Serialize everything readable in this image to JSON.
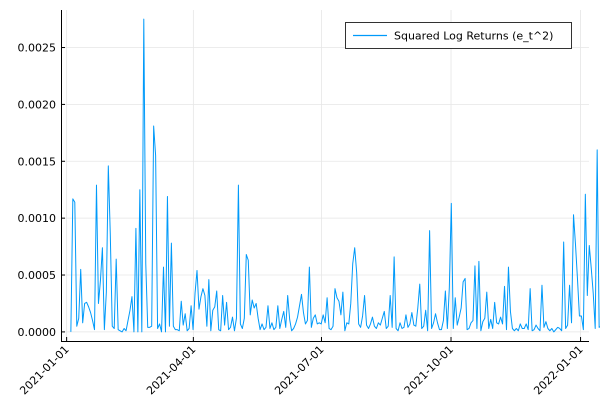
{
  "chart_data": {
    "type": "line",
    "title": "",
    "xlabel": "",
    "ylabel": "",
    "grid": true,
    "legend_position": "top-right",
    "colors": {
      "series": "#009AFA",
      "grid": "#E6E6E6",
      "axis": "#000000"
    },
    "xlim": [
      "2020-12-28",
      "2022-01-07"
    ],
    "ylim": [
      -8e-05,
      0.00283
    ],
    "x_ticks": [
      "2021-01-01",
      "2021-04-01",
      "2021-07-01",
      "2021-10-01",
      "2022-01-01"
    ],
    "y_ticks": [
      "0.0000",
      "0.0005",
      "0.0010",
      "0.0015",
      "0.0020",
      "0.0025"
    ],
    "series": [
      {
        "name": "Squared Log Returns (e_t^2)",
        "x_start": "2021-01-04",
        "x_step_days": 1.4,
        "values": [
          0.0,
          0.00117,
          0.00114,
          5e-05,
          0.00012,
          0.00055,
          8e-05,
          0.00025,
          0.00026,
          0.00022,
          0.00017,
          0.0001,
          2e-05,
          0.00129,
          0.00025,
          0.00045,
          0.00074,
          2e-05,
          0.00035,
          0.00146,
          0.00086,
          5e-05,
          3e-05,
          0.00064,
          2e-05,
          1e-05,
          0.0,
          3e-05,
          1e-05,
          0.0001,
          0.00019,
          0.00031,
          0.0,
          0.00091,
          0.0,
          0.00125,
          0.0,
          0.00275,
          0.0006,
          4e-05,
          4e-05,
          5e-05,
          0.00181,
          0.00155,
          3e-05,
          7e-05,
          0.0,
          0.00057,
          0.0,
          0.00119,
          5e-05,
          0.00078,
          5e-05,
          2e-05,
          2e-05,
          1e-05,
          0.00027,
          6e-05,
          0.00016,
          1e-05,
          3e-05,
          0.00023,
          2e-05,
          0.00034,
          0.00054,
          0.0002,
          0.00031,
          0.00038,
          0.00032,
          5e-05,
          0.00046,
          1e-05,
          0.00019,
          0.00022,
          0.00036,
          2e-05,
          1e-05,
          0.00032,
          6e-05,
          0.00026,
          2e-05,
          4e-05,
          0.00013,
          1e-05,
          0.00012,
          0.00129,
          7e-05,
          3e-05,
          0.00012,
          0.00068,
          0.00063,
          0.00015,
          0.00028,
          0.00021,
          0.00025,
          0.00012,
          2e-05,
          7e-05,
          2e-05,
          4e-05,
          0.00023,
          3e-05,
          8e-05,
          2e-05,
          4e-05,
          0.00023,
          3e-05,
          0.00011,
          0.00018,
          4e-05,
          0.00032,
          0.00011,
          1e-05,
          3e-05,
          7e-05,
          0.00013,
          0.00023,
          0.00033,
          0.00017,
          7e-05,
          0.0001,
          0.00057,
          4e-05,
          0.00012,
          0.00015,
          7e-05,
          8e-05,
          7e-05,
          0.00015,
          8e-05,
          0.0003,
          3e-05,
          2e-05,
          5e-05,
          0.00038,
          0.0003,
          0.00027,
          0.00015,
          0.00035,
          1e-05,
          8e-05,
          7e-05,
          0.00025,
          0.0006,
          0.00074,
          0.00052,
          7e-05,
          4e-05,
          0.00014,
          0.00032,
          6e-05,
          3e-05,
          7e-05,
          0.00013,
          5e-05,
          3e-05,
          8e-05,
          6e-05,
          0.00012,
          0.00018,
          3e-05,
          5e-05,
          0.00032,
          4e-05,
          0.00066,
          3e-05,
          1e-05,
          8e-05,
          3e-05,
          4e-05,
          0.00015,
          4e-05,
          7e-05,
          0.00017,
          6e-05,
          5e-05,
          0.00021,
          0.00042,
          3e-05,
          5e-05,
          0.00019,
          1e-05,
          0.00089,
          3e-05,
          8e-05,
          0.00016,
          8e-05,
          2e-05,
          2e-05,
          0.0001,
          0.00036,
          3e-05,
          0.00039,
          0.00113,
          3e-05,
          0.0003,
          6e-05,
          0.00013,
          0.00021,
          0.00044,
          0.00047,
          2e-05,
          3e-05,
          8e-05,
          0.0001,
          0.00058,
          3e-05,
          0.00062,
          1e-05,
          9e-05,
          0.00012,
          0.00035,
          3e-05,
          0.00011,
          3e-05,
          0.00026,
          8e-05,
          7e-05,
          0.00013,
          7e-05,
          0.0004,
          2e-05,
          0.00057,
          0.00018,
          3e-05,
          1e-05,
          3e-05,
          1e-05,
          7e-05,
          3e-05,
          3e-05,
          7e-05,
          2e-05,
          0.00038,
          1e-05,
          2e-05,
          6e-05,
          3e-05,
          1e-05,
          0.00041,
          4e-05,
          9e-05,
          3e-05,
          1e-05,
          3e-05,
          0.0,
          2e-05,
          4e-05,
          3e-05,
          1e-05,
          0.00079,
          3e-05,
          6e-05,
          0.00041,
          8e-05,
          0.00103,
          0.00077,
          0.00047,
          0.00014,
          0.00014,
          2e-05,
          0.00121,
          0.00032,
          0.00076,
          0.00056,
          0.00034,
          3e-05,
          0.0016,
          4e-05,
          5e-05,
          5e-05,
          0.00034,
          9e-05,
          0.00017,
          2e-05,
          0.00051,
          2e-05,
          1e-05,
          6e-05
        ]
      }
    ]
  }
}
